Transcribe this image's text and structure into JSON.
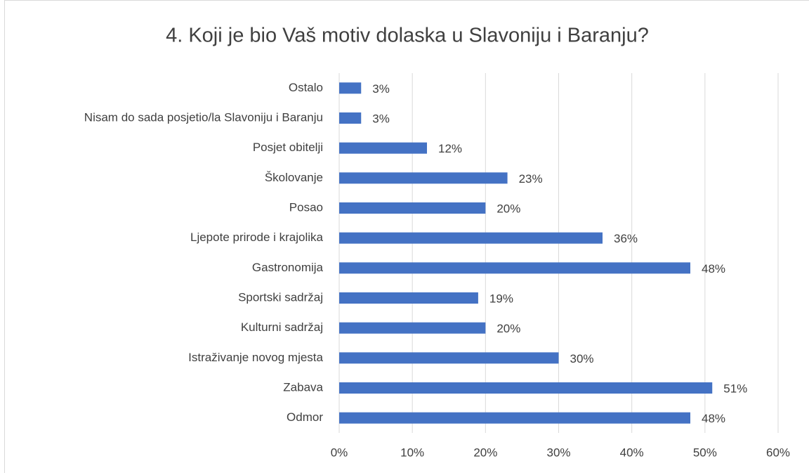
{
  "chart_data": {
    "type": "bar",
    "orientation": "horizontal",
    "title": "4. Koji je bio Vaš motiv dolaska u Slavoniju i Baranju?",
    "categories": [
      "Ostalo",
      "Nisam do sada posjetio/la Slavoniju i Baranju",
      "Posjet obitelji",
      "Školovanje",
      "Posao",
      "Ljepote prirode i krajolika",
      "Gastronomija",
      "Sportski sadržaj",
      "Kulturni sadržaj",
      "Istraživanje novog mjesta",
      "Zabava",
      "Odmor"
    ],
    "values": [
      3,
      3,
      12,
      23,
      20,
      36,
      48,
      19,
      20,
      30,
      51,
      48
    ],
    "value_labels": [
      "3%",
      "3%",
      "12%",
      "23%",
      "20%",
      "36%",
      "48%",
      "19%",
      "20%",
      "30%",
      "51%",
      "48%"
    ],
    "color": "#4472c4",
    "xlim": [
      0,
      60
    ],
    "xticks": [
      {
        "value": 0,
        "label": "0%"
      },
      {
        "value": 10,
        "label": "10%"
      },
      {
        "value": 20,
        "label": "20%"
      },
      {
        "value": 30,
        "label": "30%"
      },
      {
        "value": 40,
        "label": "40%"
      },
      {
        "value": 50,
        "label": "50%"
      },
      {
        "value": 60,
        "label": "60%"
      }
    ],
    "grid": true
  }
}
